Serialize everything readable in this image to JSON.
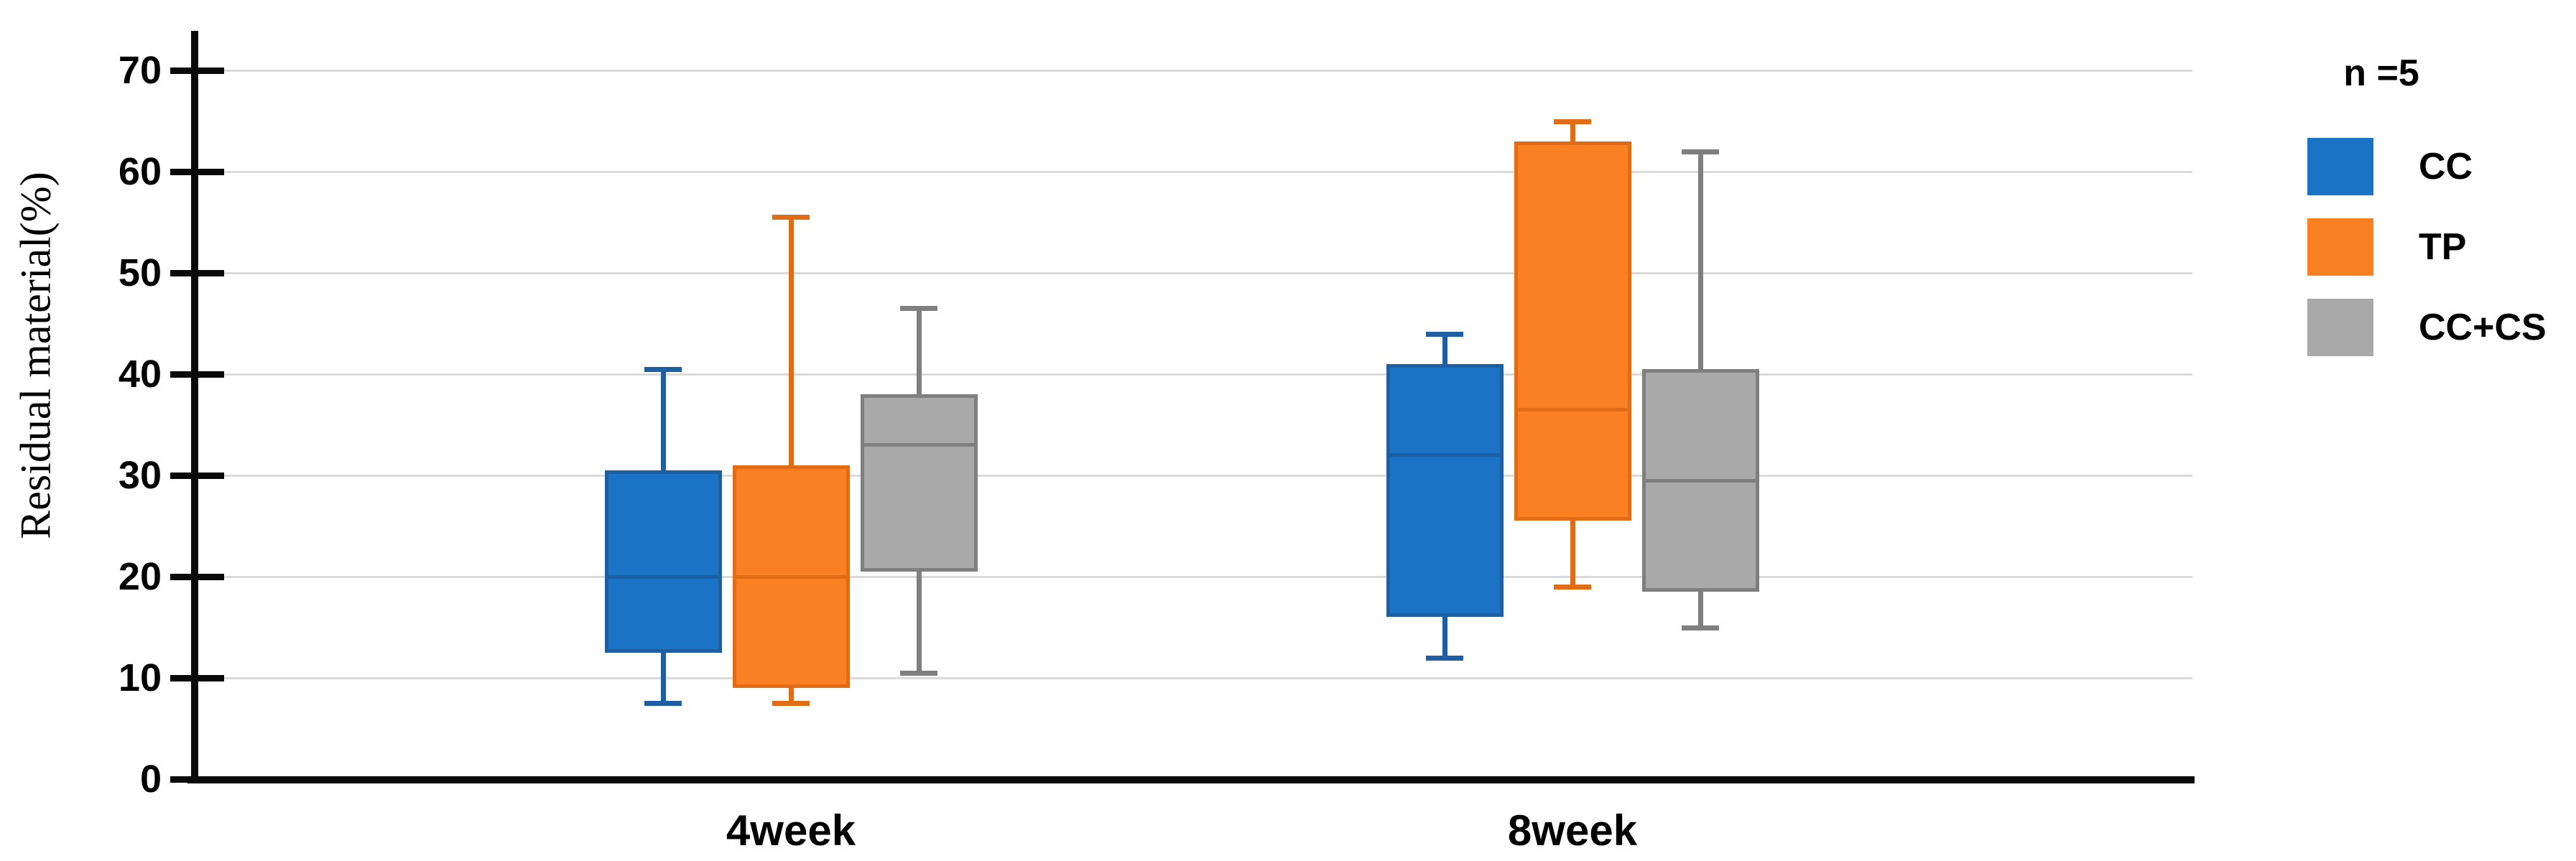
{
  "chart_data": {
    "type": "boxplot",
    "ylabel": "Residual material(%)",
    "legend_note": "n =5",
    "ylim": [
      0,
      70
    ],
    "yticks": [
      0,
      10,
      20,
      30,
      40,
      50,
      60,
      70
    ],
    "grid": "horizontal",
    "legend_position": "right",
    "categories": [
      "4week",
      "8week"
    ],
    "series": [
      {
        "name": "CC",
        "fill": "#1B73C5",
        "edge": "#1E5FA4",
        "values": [
          {
            "min": 7.5,
            "q1": 12.5,
            "median": 20,
            "q3": 30.5,
            "max": 40.5
          },
          {
            "min": 12,
            "q1": 16,
            "median": 32,
            "q3": 41,
            "max": 44
          }
        ]
      },
      {
        "name": "TP",
        "fill": "#FB8024",
        "edge": "#E26B15",
        "values": [
          {
            "min": 7.5,
            "q1": 9,
            "median": 20,
            "q3": 31,
            "max": 55.5
          },
          {
            "min": 19,
            "q1": 25.5,
            "median": 36.5,
            "q3": 63,
            "max": 65
          }
        ]
      },
      {
        "name": "CC+CS",
        "fill": "#A9A9A9",
        "edge": "#7F7F7F",
        "values": [
          {
            "min": 10.5,
            "q1": 20.5,
            "median": 33,
            "q3": 38,
            "max": 46.5
          },
          {
            "min": 15,
            "q1": 18.5,
            "median": 29.5,
            "q3": 40.5,
            "max": 62
          }
        ]
      }
    ]
  }
}
